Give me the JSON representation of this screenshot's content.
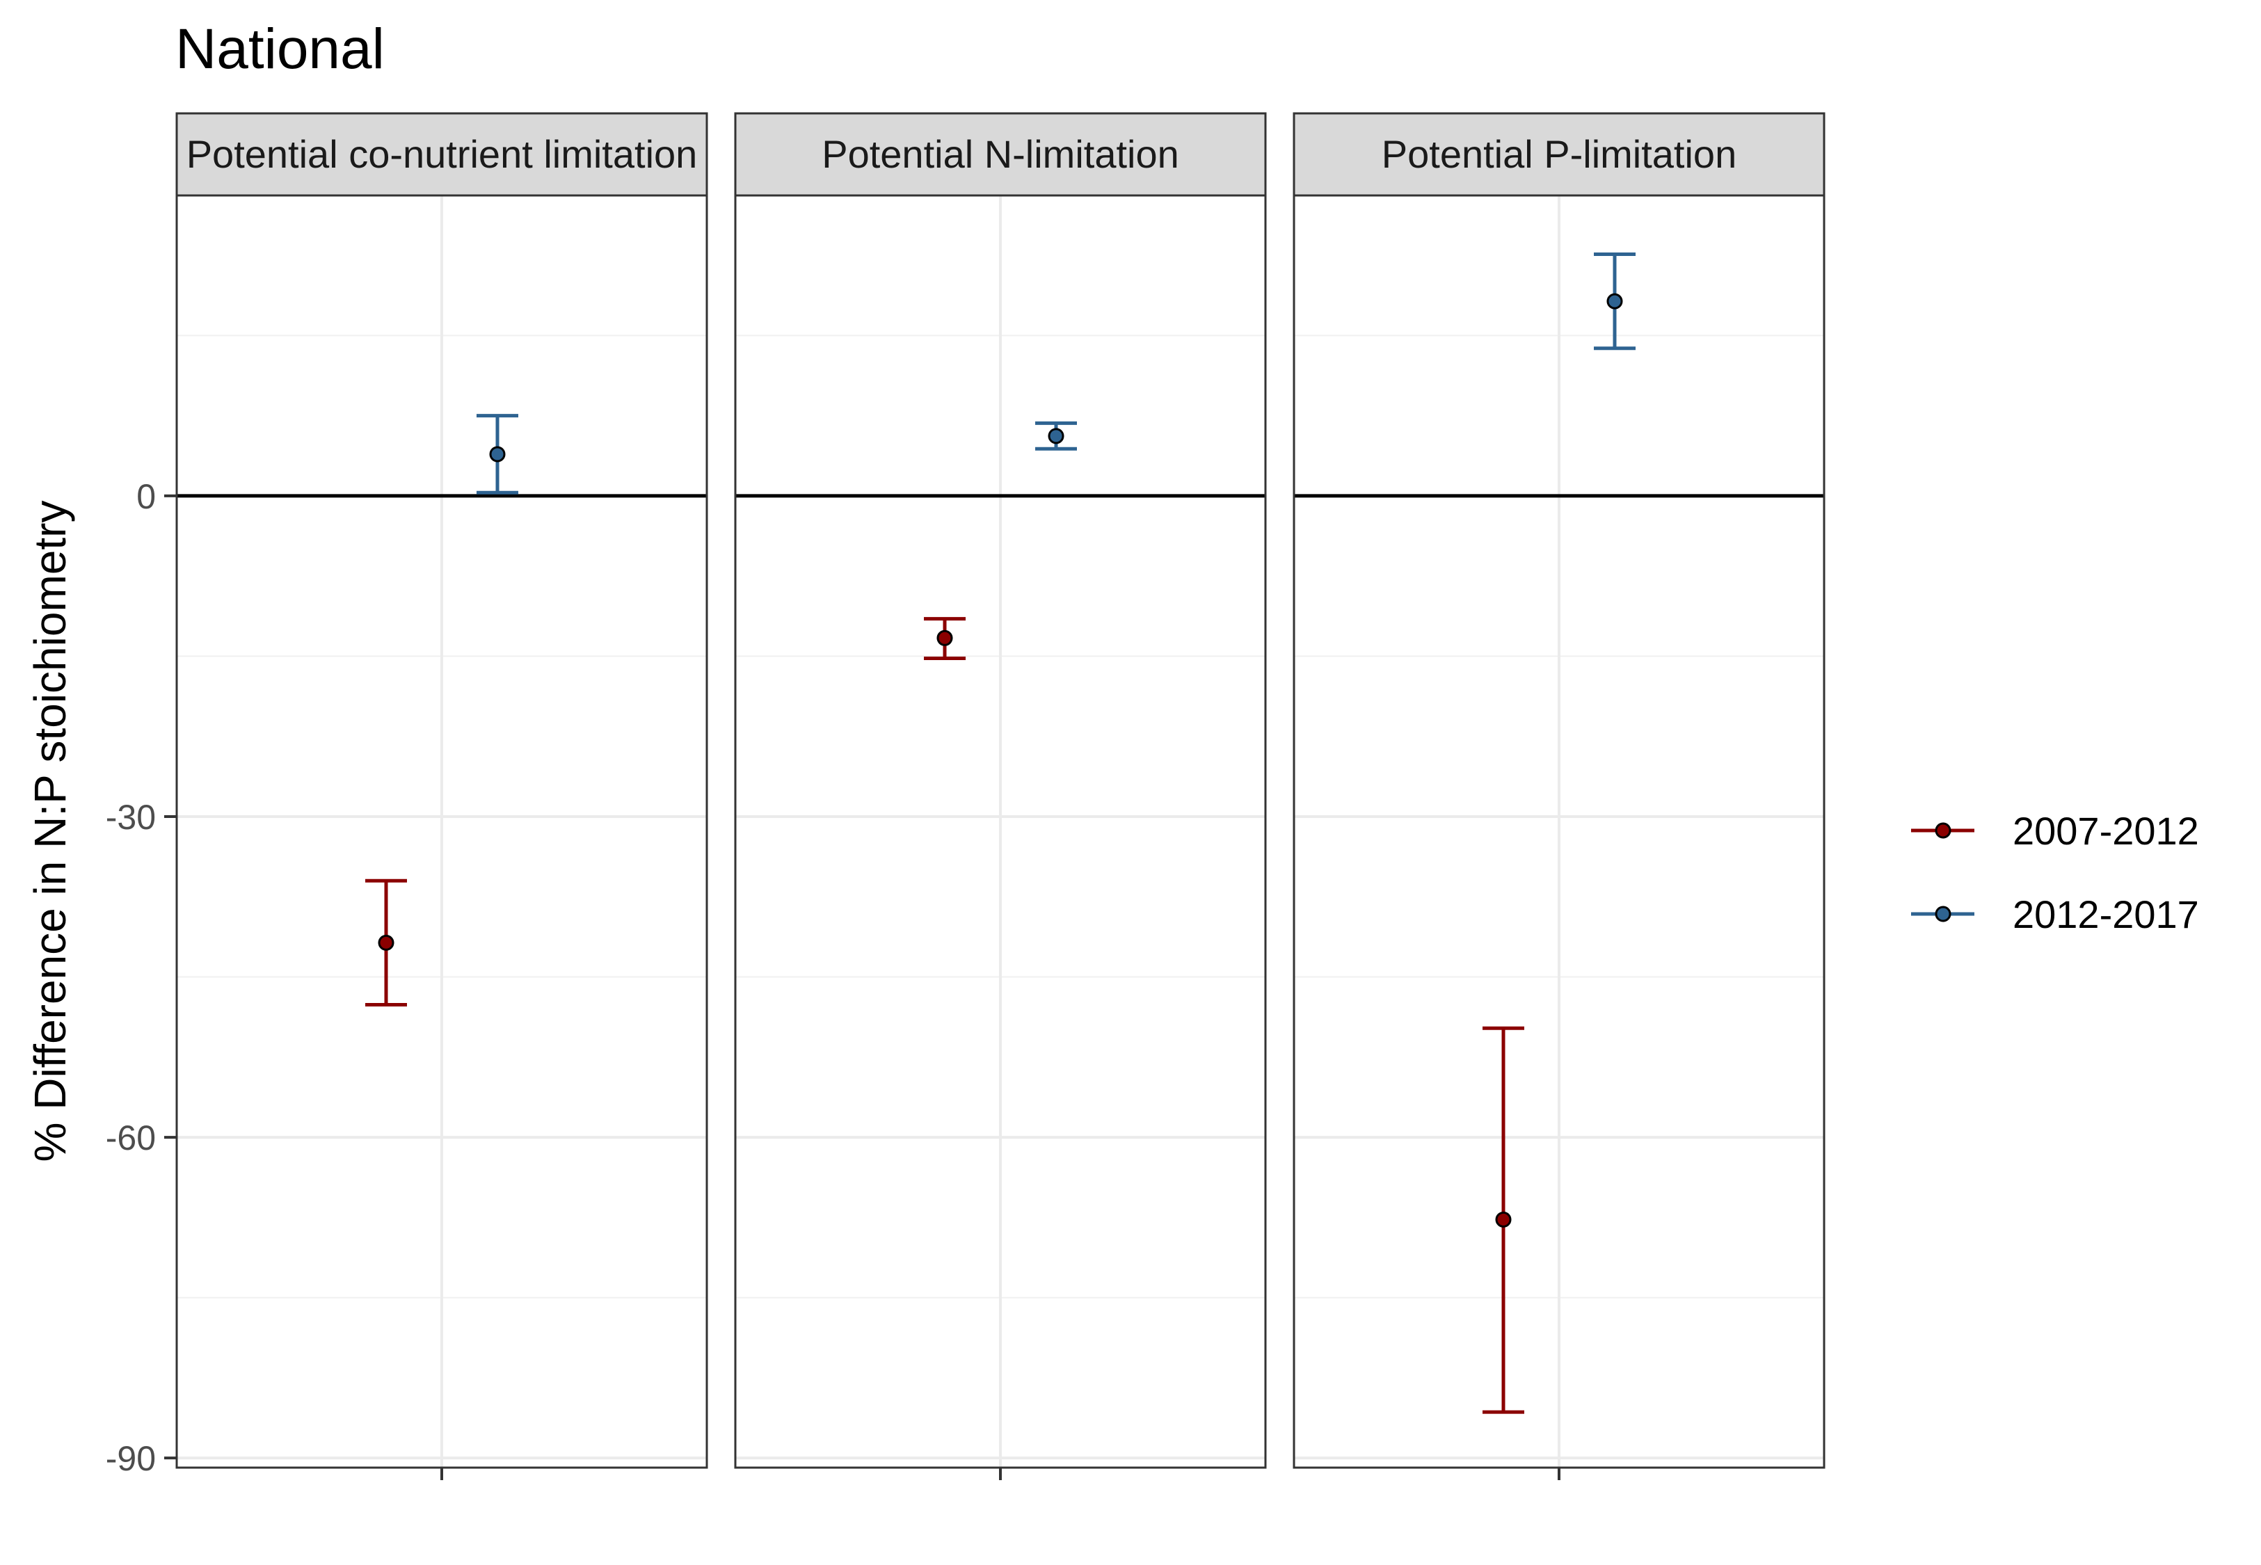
{
  "chart_data": {
    "type": "scatter",
    "title": "National",
    "ylabel": "% Difference in N:P stoichiometry",
    "xlabel": "",
    "ylim": [
      -90.9,
      28.1
    ],
    "yticks": [
      0,
      -30,
      -60,
      -90
    ],
    "grid": true,
    "legend_position": "right",
    "panels": [
      {
        "label": "Potential co-nutrient limitation",
        "points": [
          {
            "series": "2007-2012",
            "value": -41.8,
            "lower": -47.6,
            "upper": -36.0
          },
          {
            "series": "2012-2017",
            "value": 3.9,
            "lower": 0.3,
            "upper": 7.5
          }
        ]
      },
      {
        "label": "Potential N-limitation",
        "points": [
          {
            "series": "2007-2012",
            "value": -13.3,
            "lower": -15.2,
            "upper": -11.5
          },
          {
            "series": "2012-2017",
            "value": 5.6,
            "lower": 4.4,
            "upper": 6.8
          }
        ]
      },
      {
        "label": "Potential P-limitation",
        "points": [
          {
            "series": "2007-2012",
            "value": -67.7,
            "lower": -85.7,
            "upper": -49.8
          },
          {
            "series": "2012-2017",
            "value": 18.2,
            "lower": 13.8,
            "upper": 22.6
          }
        ]
      }
    ],
    "series": [
      {
        "name": "2007-2012",
        "color": "#8b0000"
      },
      {
        "name": "2012-2017",
        "color": "#2e6391"
      }
    ]
  }
}
